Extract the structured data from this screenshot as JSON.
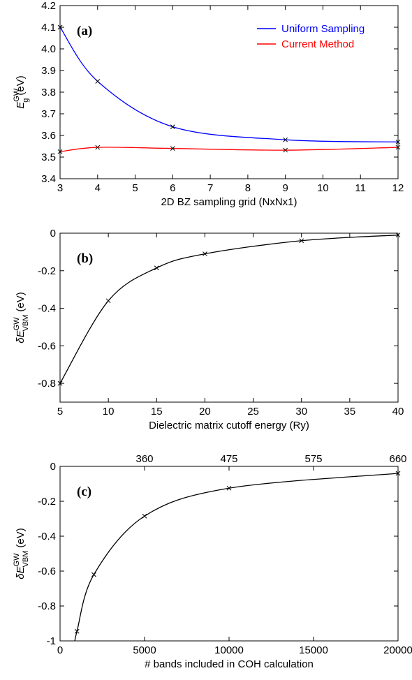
{
  "chart_data": [
    {
      "type": "line",
      "panel": "(a)",
      "xlabel": "2D BZ sampling grid (NxNx1)",
      "ylabel_main": "E",
      "ylabel_sub": "g",
      "ylabel_sup": "GW",
      "ylabel_unit": "(eV)",
      "xlim": [
        3,
        12
      ],
      "ylim": [
        3.4,
        4.2
      ],
      "xticks": [
        3,
        4,
        5,
        6,
        7,
        8,
        9,
        10,
        11,
        12
      ],
      "yticks": [
        3.4,
        3.5,
        3.6,
        3.7,
        3.8,
        3.9,
        4.0,
        4.1,
        4.2
      ],
      "ytick_labels": [
        "3.4",
        "3.5",
        "3.6",
        "3.7",
        "3.8",
        "3.9",
        "4.0",
        "4.1",
        "4.2"
      ],
      "legend_position": "top-right",
      "series": [
        {
          "name": "Uniform Sampling",
          "color": "#0000ff",
          "x": [
            3,
            4,
            6,
            9,
            12
          ],
          "y": [
            4.1,
            3.85,
            3.64,
            3.58,
            3.57
          ]
        },
        {
          "name": "Current Method",
          "color": "#ff0000",
          "x": [
            3,
            4,
            6,
            9,
            12
          ],
          "y": [
            3.525,
            3.545,
            3.54,
            3.532,
            3.545
          ]
        }
      ]
    },
    {
      "type": "line",
      "panel": "(b)",
      "xlabel": "Dielectric matrix cutoff energy (Ry)",
      "ylabel_main": "δE",
      "ylabel_sub": "VBM",
      "ylabel_sup": "GW",
      "ylabel_unit": "(eV)",
      "xlim": [
        5,
        40
      ],
      "ylim": [
        -0.9,
        0
      ],
      "xticks": [
        5,
        10,
        15,
        20,
        25,
        30,
        35,
        40
      ],
      "yticks": [
        0,
        -0.2,
        -0.4,
        -0.6,
        -0.8
      ],
      "ytick_labels": [
        "0",
        "-0.2",
        "-0.4",
        "-0.6",
        "-0.8"
      ],
      "series": [
        {
          "color": "#000000",
          "x": [
            5,
            10,
            15,
            20,
            30,
            40
          ],
          "y": [
            -0.8,
            -0.36,
            -0.185,
            -0.11,
            -0.04,
            -0.01
          ]
        }
      ]
    },
    {
      "type": "line",
      "panel": "(c)",
      "xlabel": "# bands included in COH calculation",
      "ylabel_main": "δE",
      "ylabel_sub": "VBM",
      "ylabel_sup": "GW",
      "ylabel_unit": "(eV)",
      "xlim": [
        0,
        20000
      ],
      "ylim": [
        -1,
        0
      ],
      "xticks": [
        0,
        5000,
        10000,
        15000,
        20000
      ],
      "yticks": [
        0,
        -0.2,
        -0.4,
        -0.6,
        -0.8,
        -1
      ],
      "ytick_labels": [
        "0",
        "-0.2",
        "-0.4",
        "-0.6",
        "-0.8",
        "-1"
      ],
      "top_ticks": [
        {
          "x": 5000,
          "label": "360"
        },
        {
          "x": 10000,
          "label": "475"
        },
        {
          "x": 15000,
          "label": "575"
        },
        {
          "x": 20000,
          "label": "660"
        }
      ],
      "series": [
        {
          "color": "#000000",
          "x": [
            1000,
            2000,
            5000,
            10000,
            20000
          ],
          "y": [
            -0.945,
            -0.62,
            -0.285,
            -0.125,
            -0.04
          ]
        }
      ]
    }
  ]
}
